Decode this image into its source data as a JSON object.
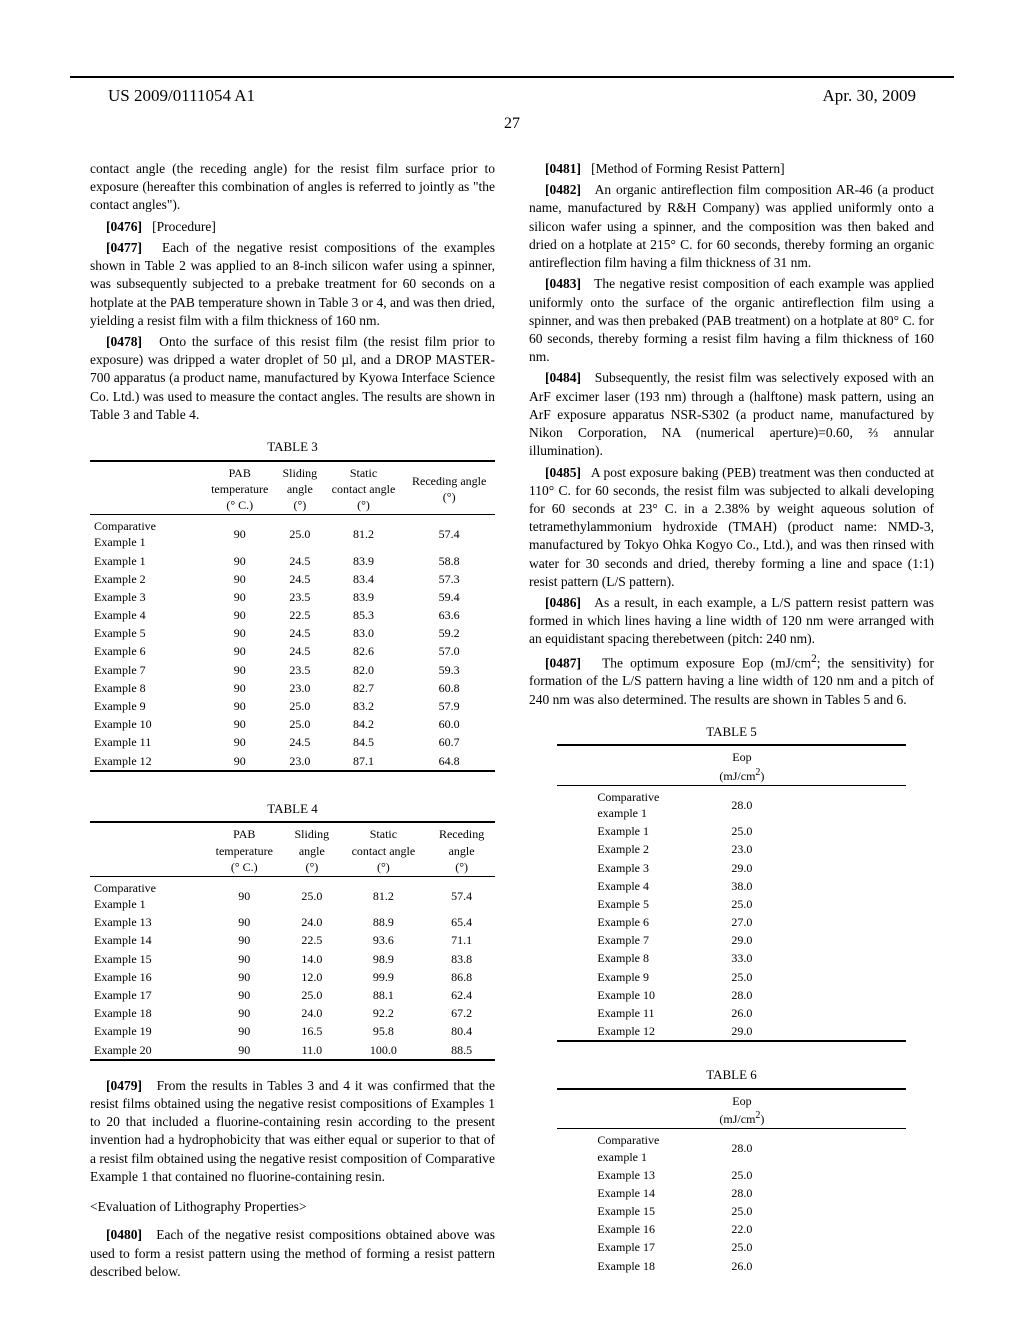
{
  "header": {
    "publication_number": "US 2009/0111054 A1",
    "publication_date": "Apr. 30, 2009",
    "page_number": "27"
  },
  "left": {
    "p_continued": "contact angle (the receding angle) for the resist film surface prior to exposure (hereafter this combination of angles is referred to jointly as \"the contact angles\").",
    "p0476_num": "[0476]",
    "p0476": "[Procedure]",
    "p0477_num": "[0477]",
    "p0477": "Each of the negative resist compositions of the examples shown in Table 2 was applied to an 8-inch silicon wafer using a spinner, was subsequently subjected to a prebake treatment for 60 seconds on a hotplate at the PAB temperature shown in Table 3 or 4, and was then dried, yielding a resist film with a film thickness of 160 nm.",
    "p0478_num": "[0478]",
    "p0478": "Onto the surface of this resist film (the resist film prior to exposure) was dripped a water droplet of 50 µl, and a DROP MASTER-700 apparatus (a product name, manufactured by Kyowa Interface Science Co. Ltd.) was used to measure the contact angles. The results are shown in Table 3 and Table 4.",
    "table3": {
      "caption": "TABLE 3",
      "headers": [
        "",
        "PAB temperature (° C.)",
        "Sliding angle (°)",
        "Static contact angle (°)",
        "Receding angle (°)"
      ],
      "rows": [
        [
          "Comparative Example 1",
          "90",
          "25.0",
          "81.2",
          "57.4"
        ],
        [
          "Example 1",
          "90",
          "24.5",
          "83.9",
          "58.8"
        ],
        [
          "Example 2",
          "90",
          "24.5",
          "83.4",
          "57.3"
        ],
        [
          "Example 3",
          "90",
          "23.5",
          "83.9",
          "59.4"
        ],
        [
          "Example 4",
          "90",
          "22.5",
          "85.3",
          "63.6"
        ],
        [
          "Example 5",
          "90",
          "24.5",
          "83.0",
          "59.2"
        ],
        [
          "Example 6",
          "90",
          "24.5",
          "82.6",
          "57.0"
        ],
        [
          "Example 7",
          "90",
          "23.5",
          "82.0",
          "59.3"
        ],
        [
          "Example 8",
          "90",
          "23.0",
          "82.7",
          "60.8"
        ],
        [
          "Example 9",
          "90",
          "25.0",
          "83.2",
          "57.9"
        ],
        [
          "Example 10",
          "90",
          "25.0",
          "84.2",
          "60.0"
        ],
        [
          "Example 11",
          "90",
          "24.5",
          "84.5",
          "60.7"
        ],
        [
          "Example 12",
          "90",
          "23.0",
          "87.1",
          "64.8"
        ]
      ]
    },
    "table4": {
      "caption": "TABLE 4",
      "headers": [
        "",
        "PAB temperature (° C.)",
        "Sliding angle (°)",
        "Static contact angle (°)",
        "Receding angle (°)"
      ],
      "rows": [
        [
          "Comparative Example 1",
          "90",
          "25.0",
          "81.2",
          "57.4"
        ],
        [
          "Example 13",
          "90",
          "24.0",
          "88.9",
          "65.4"
        ],
        [
          "Example 14",
          "90",
          "22.5",
          "93.6",
          "71.1"
        ],
        [
          "Example 15",
          "90",
          "14.0",
          "98.9",
          "83.8"
        ],
        [
          "Example 16",
          "90",
          "12.0",
          "99.9",
          "86.8"
        ],
        [
          "Example 17",
          "90",
          "25.0",
          "88.1",
          "62.4"
        ],
        [
          "Example 18",
          "90",
          "24.0",
          "92.2",
          "67.2"
        ],
        [
          "Example 19",
          "90",
          "16.5",
          "95.8",
          "80.4"
        ],
        [
          "Example 20",
          "90",
          "11.0",
          "100.0",
          "88.5"
        ]
      ]
    },
    "p0479_num": "[0479]",
    "p0479": "From the results in Tables 3 and 4 it was confirmed that the resist films obtained using the negative resist compositions of Examples 1 to 20 that included a fluorine-containing resin according to the present invention had a hydrophobicity that was either equal or superior to that of a resist film obtained using the negative resist composition of Comparative Example 1 that contained no fluorine-containing resin.",
    "heading_eval": "<Evaluation of Lithography Properties>",
    "p0480_num": "[0480]",
    "p0480": "Each of the negative resist compositions obtained above was used to form a resist pattern using the method of forming a resist pattern described below."
  },
  "right": {
    "p0481_num": "[0481]",
    "p0481": "[Method of Forming Resist Pattern]",
    "p0482_num": "[0482]",
    "p0482": "An organic antireflection film composition AR-46 (a product name, manufactured by R&H Company) was applied uniformly onto a silicon wafer using a spinner, and the composition was then baked and dried on a hotplate at 215° C. for 60 seconds, thereby forming an organic antireflection film having a film thickness of 31 nm.",
    "p0483_num": "[0483]",
    "p0483": "The negative resist composition of each example was applied uniformly onto the surface of the organic antireflection film using a spinner, and was then prebaked (PAB treatment) on a hotplate at 80° C. for 60 seconds, thereby forming a resist film having a film thickness of 160 nm.",
    "p0484_num": "[0484]",
    "p0484": "Subsequently, the resist film was selectively exposed with an ArF excimer laser (193 nm) through a (halftone) mask pattern, using an ArF exposure apparatus NSR-S302 (a product name, manufactured by Nikon Corporation, NA (numerical aperture)=0.60, ⅔ annular illumination).",
    "p0485_num": "[0485]",
    "p0485": "A post exposure baking (PEB) treatment was then conducted at 110° C. for 60 seconds, the resist film was subjected to alkali developing for 60 seconds at 23° C. in a 2.38% by weight aqueous solution of tetramethylammonium hydroxide (TMAH) (product name: NMD-3, manufactured by Tokyo Ohka Kogyo Co., Ltd.), and was then rinsed with water for 30 seconds and dried, thereby forming a line and space (1:1) resist pattern (L/S pattern).",
    "p0486_num": "[0486]",
    "p0486": "As a result, in each example, a L/S pattern resist pattern was formed in which lines having a line width of 120 nm were arranged with an equidistant spacing therebetween (pitch: 240 nm).",
    "p0487_num": "[0487]",
    "p0487_a": "The optimum exposure Eop (mJ/cm",
    "p0487_b": "; the sensitivity) for formation of the L/S pattern having a line width of 120 nm and a pitch of 240 nm was also determined. The results are shown in Tables 5 and 6.",
    "table5": {
      "caption": "TABLE 5",
      "header": "Eop (mJ/cm²)",
      "rows": [
        [
          "Comparative example 1",
          "28.0"
        ],
        [
          "Example 1",
          "25.0"
        ],
        [
          "Example 2",
          "23.0"
        ],
        [
          "Example 3",
          "29.0"
        ],
        [
          "Example 4",
          "38.0"
        ],
        [
          "Example 5",
          "25.0"
        ],
        [
          "Example 6",
          "27.0"
        ],
        [
          "Example 7",
          "29.0"
        ],
        [
          "Example 8",
          "33.0"
        ],
        [
          "Example 9",
          "25.0"
        ],
        [
          "Example 10",
          "28.0"
        ],
        [
          "Example 11",
          "26.0"
        ],
        [
          "Example 12",
          "29.0"
        ]
      ]
    },
    "table6": {
      "caption": "TABLE 6",
      "header": "Eop (mJ/cm²)",
      "rows": [
        [
          "Comparative example 1",
          "28.0"
        ],
        [
          "Example 13",
          "25.0"
        ],
        [
          "Example 14",
          "28.0"
        ],
        [
          "Example 15",
          "25.0"
        ],
        [
          "Example 16",
          "22.0"
        ],
        [
          "Example 17",
          "25.0"
        ],
        [
          "Example 18",
          "26.0"
        ]
      ]
    }
  }
}
